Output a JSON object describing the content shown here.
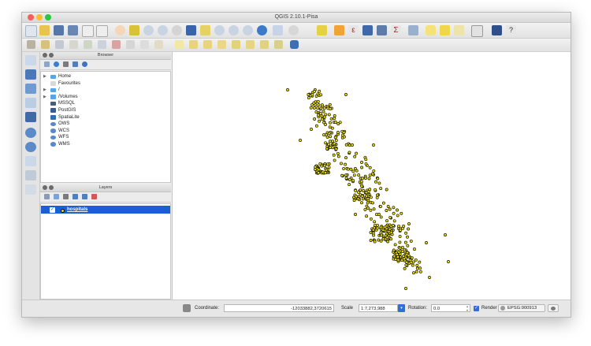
{
  "window": {
    "title": "QGIS 2.10.1-Pisa"
  },
  "browser_panel": {
    "title": "Browser",
    "items": [
      {
        "label": "Home",
        "icon": "folder-icon",
        "expandable": true
      },
      {
        "label": "Favourites",
        "icon": "star-icon",
        "expandable": false
      },
      {
        "label": "/",
        "icon": "folder-icon",
        "expandable": true
      },
      {
        "label": "/Volumes",
        "icon": "folder-icon",
        "expandable": true
      },
      {
        "label": "MSSQL",
        "icon": "mssql-icon",
        "expandable": false
      },
      {
        "label": "PostGIS",
        "icon": "postgis-icon",
        "expandable": false
      },
      {
        "label": "SpatiaLite",
        "icon": "spatialite-icon",
        "expandable": false
      },
      {
        "label": "OWS",
        "icon": "ows-globe-icon",
        "expandable": false
      },
      {
        "label": "WCS",
        "icon": "wcs-globe-icon",
        "expandable": false
      },
      {
        "label": "WFS",
        "icon": "wfs-globe-icon",
        "expandable": false
      },
      {
        "label": "WMS",
        "icon": "wms-globe-icon",
        "expandable": false
      }
    ]
  },
  "layers_panel": {
    "title": "Layers",
    "layers": [
      {
        "name": "hospitals",
        "visible": true,
        "selected": true
      }
    ]
  },
  "status_bar": {
    "coordinate_label": "Coordinate:",
    "coordinate_value": "-12033882,3720615",
    "scale_label": "Scale",
    "scale_value": "1:7,273,988",
    "rotation_label": "Rotation:",
    "rotation_value": "0.0",
    "render_label": "Render",
    "render_checked": true,
    "crs_label": "EPSG:900913"
  },
  "colors": {
    "accent": "#2d6ed8",
    "selection": "#1a5fd6",
    "point_fill": "#f0e000",
    "point_stroke": "#1a1a00"
  }
}
